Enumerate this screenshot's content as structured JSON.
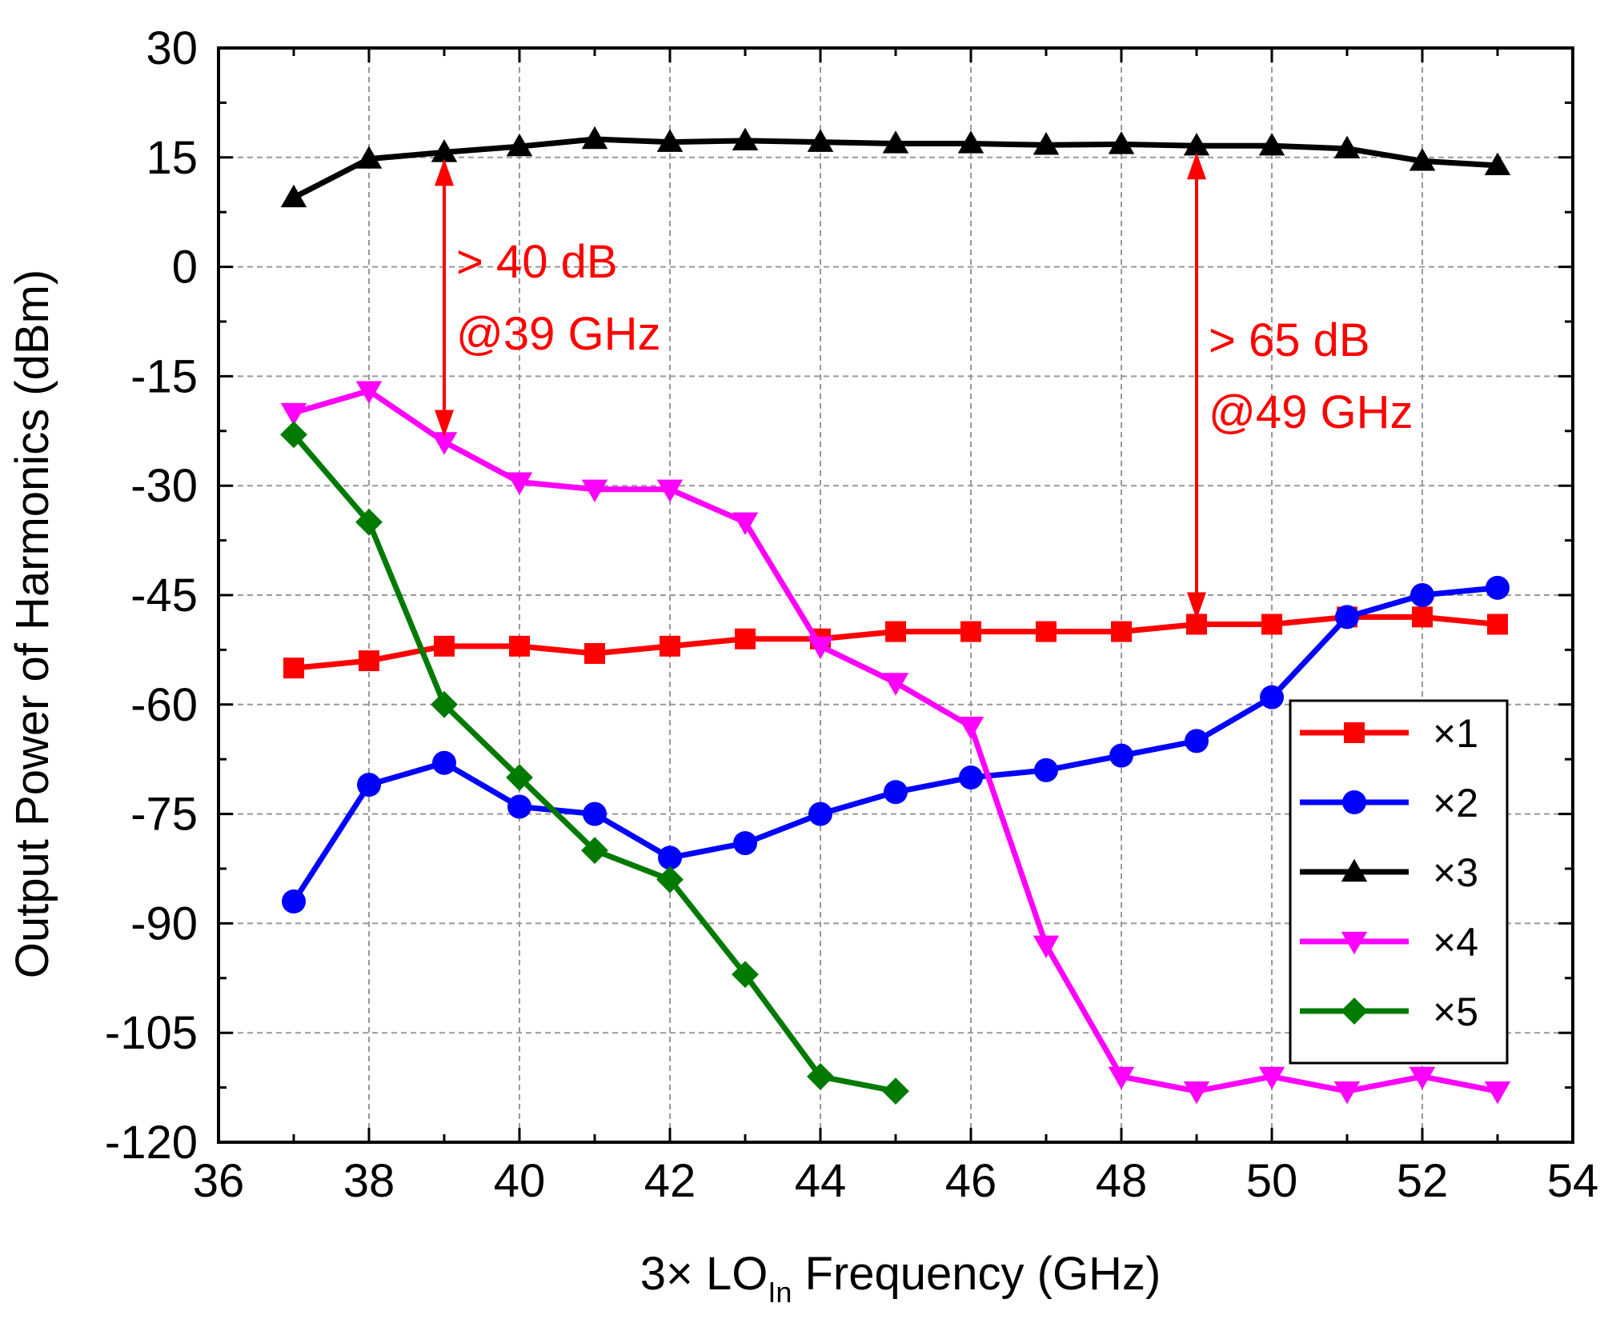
{
  "chart_data": {
    "type": "line",
    "title": "",
    "xlabel_main": "3× LO",
    "xlabel_sub": "In",
    "xlabel_tail": " Frequency (GHz)",
    "ylabel": "Output Power of Harmonics (dBm)",
    "xlim": [
      36,
      54
    ],
    "ylim": [
      -120,
      30
    ],
    "xticks": [
      36,
      38,
      40,
      42,
      44,
      46,
      48,
      50,
      52,
      54
    ],
    "xtick_labels": [
      "36",
      "38",
      "40",
      "42",
      "44",
      "46",
      "48",
      "50",
      "52",
      "54"
    ],
    "yticks": [
      30,
      15,
      0,
      -15,
      -30,
      -45,
      -60,
      -75,
      -90,
      -105,
      -120
    ],
    "ytick_labels": [
      "30",
      "15",
      "0",
      "-15",
      "-30",
      "-45",
      "-60",
      "-75",
      "-90",
      "-105",
      "-120"
    ],
    "grid": true,
    "legend_position": "bottom-right",
    "series": [
      {
        "name": "×1",
        "color": "#ff0000",
        "marker": "square",
        "x": [
          37,
          38,
          39,
          40,
          41,
          42,
          43,
          44,
          45,
          46,
          47,
          48,
          49,
          50,
          51,
          52,
          53
        ],
        "y": [
          -55,
          -54,
          -52,
          -52,
          -53,
          -52,
          -51,
          -51,
          -50,
          -50,
          -50,
          -50,
          -49,
          -49,
          -48,
          -48,
          -49
        ]
      },
      {
        "name": "×2",
        "color": "#0000ff",
        "marker": "circle",
        "x": [
          37,
          38,
          39,
          40,
          41,
          42,
          43,
          44,
          45,
          46,
          47,
          48,
          49,
          50,
          51,
          52,
          53
        ],
        "y": [
          -87,
          -71,
          -68,
          -74,
          -75,
          -81,
          -79,
          -75,
          -72,
          -70,
          -69,
          -67,
          -65,
          -59,
          -48,
          -45,
          -44
        ]
      },
      {
        "name": "×3",
        "color": "#000000",
        "marker": "triangle-up",
        "x": [
          37,
          38,
          39,
          40,
          41,
          42,
          43,
          44,
          45,
          46,
          47,
          48,
          49,
          50,
          51,
          52,
          53
        ],
        "y": [
          9.5,
          14.8,
          15.7,
          16.5,
          17.5,
          17.1,
          17.3,
          17.1,
          16.9,
          16.9,
          16.7,
          16.8,
          16.6,
          16.6,
          16.2,
          14.5,
          13.9
        ]
      },
      {
        "name": "×4",
        "color": "#ff00ff",
        "marker": "triangle-down",
        "x": [
          37,
          38,
          39,
          40,
          41,
          42,
          43,
          44,
          45,
          46,
          47,
          48,
          49,
          50,
          51,
          52,
          53
        ],
        "y": [
          -20,
          -17,
          -24,
          -29.5,
          -30.5,
          -30.5,
          -35,
          -52,
          -57,
          -63,
          -93,
          -111,
          -113,
          -111,
          -113,
          -111,
          -113
        ]
      },
      {
        "name": "×5",
        "color": "#007a00",
        "marker": "diamond",
        "x": [
          37,
          38,
          39,
          40,
          41,
          42,
          43,
          44,
          45
        ],
        "y": [
          -23,
          -35,
          -60,
          -70,
          -80,
          -84,
          -97,
          -111,
          -113
        ]
      }
    ],
    "annotations": [
      {
        "line1": "> 40 dB",
        "line2": "@39 GHz",
        "x": 39,
        "y_top": 15.7,
        "y_bottom": -24,
        "color": "#ff0000"
      },
      {
        "line1": "> 65 dB",
        "line2": "@49 GHz",
        "x": 49,
        "y_top": 16.6,
        "y_bottom": -49,
        "color": "#ff0000"
      }
    ]
  }
}
